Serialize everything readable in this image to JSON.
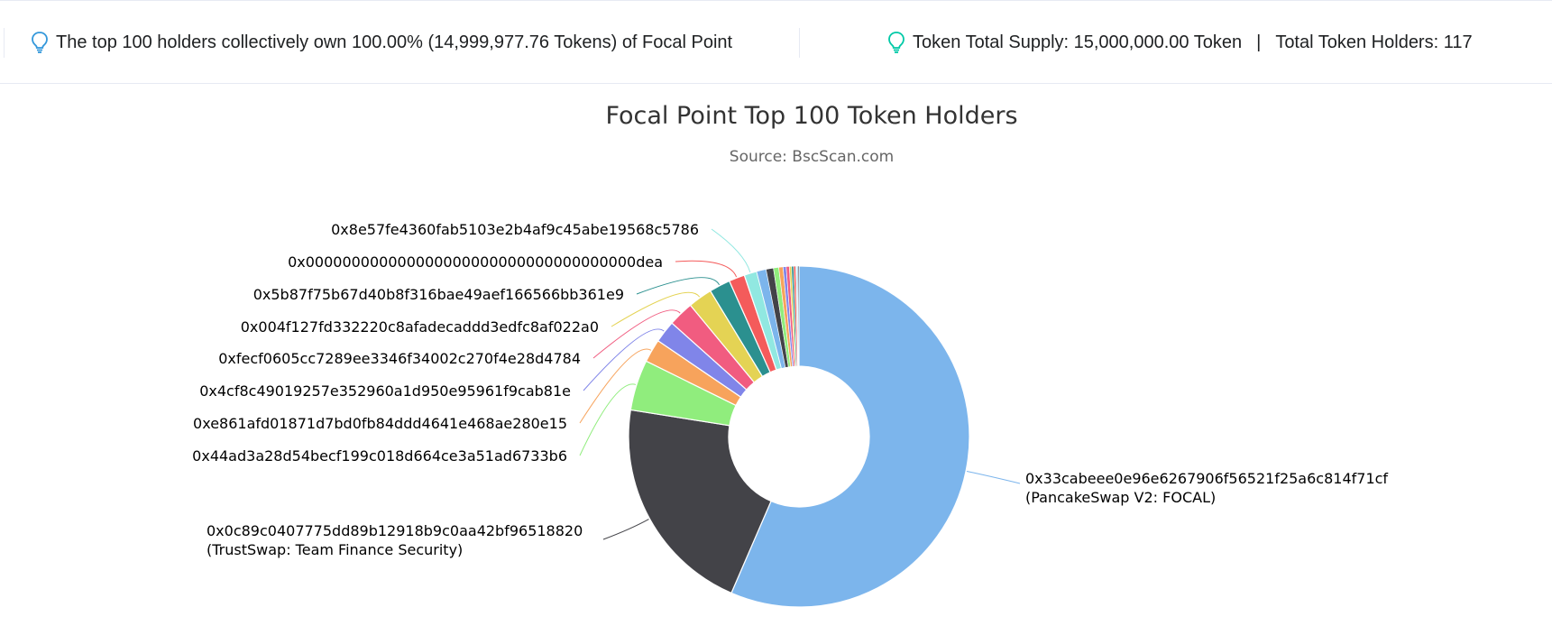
{
  "header": {
    "summary_text": "The top 100 holders collectively own 100.00% (14,999,977.76 Tokens) of Focal Point",
    "supply_text": "Token Total Supply: 15,000,000.00 Token",
    "separator": "|",
    "holders_text": "Total Token Holders: 117",
    "icon": "lightbulb-icon"
  },
  "chart_data": {
    "type": "pie",
    "donut": true,
    "title": "Focal Point Top 100 Token Holders",
    "subtitle": "Source: BscScan.com",
    "labels_shown": [
      {
        "address": "0x33cabeee0e96e6267906f56521f25a6c814f71cf",
        "tag": "(PancakeSwap V2: FOCAL)",
        "percent": 56.5,
        "color": "#7cb5ec"
      },
      {
        "address": "0x0c89c0407775dd89b12918b9c0aa42bf96518820",
        "tag": "(TrustSwap: Team Finance Security)",
        "percent": 21.0,
        "color": "#434348"
      },
      {
        "address": "0x44ad3a28d54becf199c018d664ce3a51ad6733b6",
        "tag": "",
        "percent": 4.8,
        "color": "#90ed7d"
      },
      {
        "address": "0xe861afd01871d7bd0fb84ddd4641e468ae280e15",
        "tag": "",
        "percent": 2.2,
        "color": "#f7a35c"
      },
      {
        "address": "0x4cf8c49019257e352960a1d950e95961f9cab81e",
        "tag": "",
        "percent": 2.1,
        "color": "#8085e9"
      },
      {
        "address": "0xfecf0605cc7289ee3346f34002c270f4e28d4784",
        "tag": "",
        "percent": 2.4,
        "color": "#f15c80"
      },
      {
        "address": "0x004f127fd332220c8afadecaddd3edfc8af022a0",
        "tag": "",
        "percent": 2.3,
        "color": "#e4d354"
      },
      {
        "address": "0x5b87f75b67d40b8f316bae49aef166566bb361e9",
        "tag": "",
        "percent": 2.0,
        "color": "#2b908f"
      },
      {
        "address": "0x000000000000000000000000000000000000dea",
        "tag": "",
        "percent": 1.5,
        "color": "#f45b5b"
      },
      {
        "address": "0x8e57fe4360fab5103e2b4af9c45abe19568c5786",
        "tag": "",
        "percent": 1.2,
        "color": "#91e8e1"
      }
    ],
    "unlabeled_slices": [
      {
        "percent": 0.9,
        "color": "#7cb5ec"
      },
      {
        "percent": 0.7,
        "color": "#434348"
      },
      {
        "percent": 0.5,
        "color": "#90ed7d"
      },
      {
        "percent": 0.4,
        "color": "#f7a35c"
      },
      {
        "percent": 0.3,
        "color": "#8085e9"
      },
      {
        "percent": 0.3,
        "color": "#f15c80"
      },
      {
        "percent": 0.2,
        "color": "#e4d354"
      },
      {
        "percent": 0.2,
        "color": "#2b908f"
      },
      {
        "percent": 0.2,
        "color": "#f45b5b"
      },
      {
        "percent": 0.1,
        "color": "#91e8e1"
      },
      {
        "percent": 0.1,
        "color": "#7cb5ec"
      },
      {
        "percent": 0.1,
        "color": "#434348"
      }
    ]
  }
}
